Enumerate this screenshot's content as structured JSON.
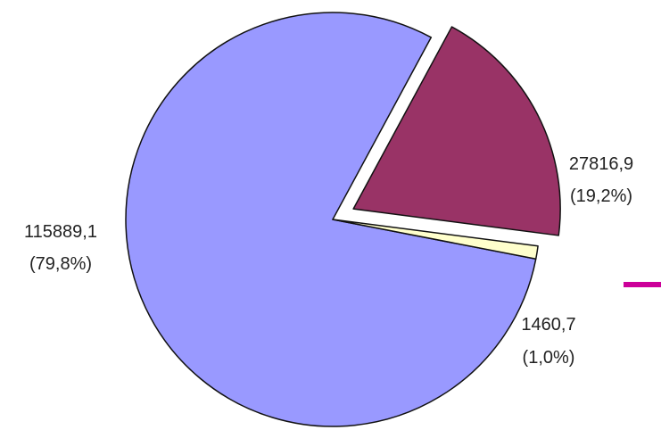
{
  "chart_data": {
    "type": "pie",
    "title": "",
    "slices": [
      {
        "value": 115889.1,
        "value_label": "115889,1",
        "percent_label": "(79,8%)",
        "color": "#9999ff",
        "exploded": false
      },
      {
        "value": 27816.9,
        "value_label": "27816,9",
        "percent_label": "(19,2%)",
        "color": "#993366",
        "exploded": true
      },
      {
        "value": 1460.7,
        "value_label": "1460,7",
        "percent_label": "(1,0%)",
        "color": "#ffffcc",
        "exploded": false
      }
    ],
    "legend_marker_color": "#cc0099"
  }
}
